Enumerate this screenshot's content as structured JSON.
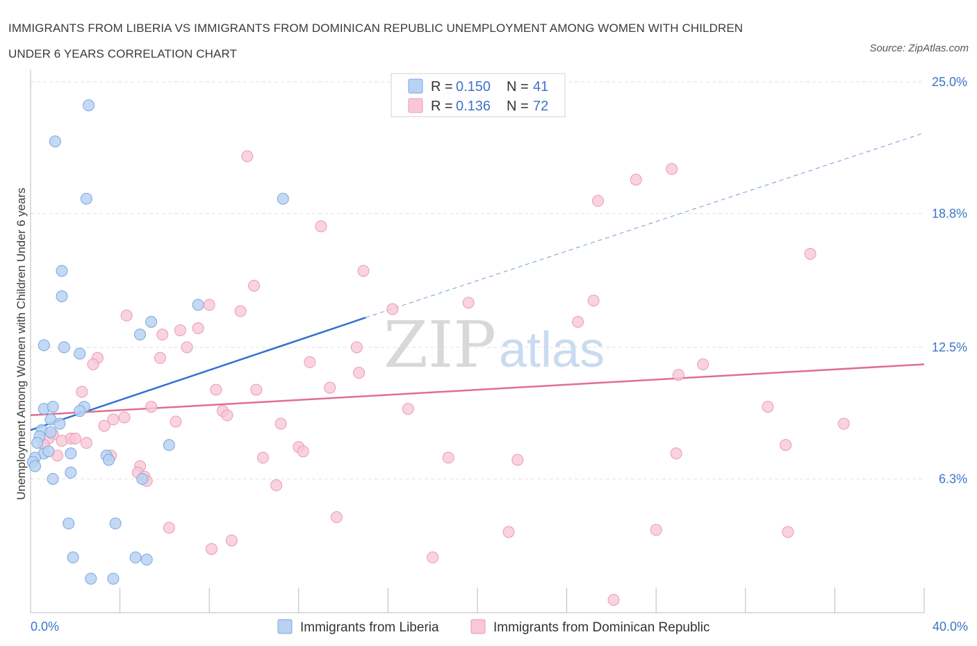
{
  "title_line1": "IMMIGRANTS FROM LIBERIA VS IMMIGRANTS FROM DOMINICAN REPUBLIC UNEMPLOYMENT AMONG WOMEN WITH CHILDREN",
  "title_line2": "UNDER 6 YEARS CORRELATION CHART",
  "source": "Source: ZipAtlas.com",
  "watermark": {
    "zip": "ZIP",
    "atlas": "atlas"
  },
  "legend": {
    "r_label": "R =",
    "n_label": "N =",
    "series1": {
      "r": "0.150",
      "n": "41"
    },
    "series2": {
      "r": "0.136",
      "n": "72"
    }
  },
  "colors": {
    "liberia_fill": "#b9d2f2",
    "liberia_stroke": "#7aa6df",
    "liberia_line": "#2f73cc",
    "dr_fill": "#f8c8d6",
    "dr_stroke": "#eb9ab2",
    "dr_line": "#e06d95",
    "tick": "#3b74c8",
    "grid": "#e2e2e2"
  },
  "chart_data": {
    "type": "scatter",
    "title": "IMMIGRANTS FROM LIBERIA VS IMMIGRANTS FROM DOMINICAN REPUBLIC UNEMPLOYMENT AMONG WOMEN WITH CHILDREN UNDER 6 YEARS CORRELATION CHART",
    "xlabel": "",
    "ylabel": "Unemployment Among Women with Children Under 6 years",
    "xlim": [
      0,
      40
    ],
    "ylim": [
      0,
      25
    ],
    "x_tick_labels": [
      {
        "value": 0,
        "label": "0.0%"
      },
      {
        "value": 40,
        "label": "40.0%"
      }
    ],
    "y_tick_labels": [
      {
        "value": 6.3,
        "label": "6.3%"
      },
      {
        "value": 12.5,
        "label": "12.5%"
      },
      {
        "value": 18.8,
        "label": "18.8%"
      },
      {
        "value": 25.0,
        "label": "25.0%"
      }
    ],
    "series": [
      {
        "name": "Immigrants from Liberia",
        "R": 0.15,
        "N": 41,
        "trend": {
          "x": [
            0,
            15
          ],
          "y": [
            8.6,
            13.9
          ],
          "dashed_extension": {
            "x": [
              15,
              40
            ],
            "y": [
              13.9,
              22.6
            ]
          }
        },
        "points": [
          {
            "x": 2.6,
            "y": 23.9
          },
          {
            "x": 1.1,
            "y": 22.2
          },
          {
            "x": 2.5,
            "y": 19.5
          },
          {
            "x": 11.3,
            "y": 19.5
          },
          {
            "x": 1.4,
            "y": 16.1
          },
          {
            "x": 1.4,
            "y": 14.9
          },
          {
            "x": 7.5,
            "y": 14.5
          },
          {
            "x": 5.4,
            "y": 13.7
          },
          {
            "x": 4.9,
            "y": 13.1
          },
          {
            "x": 0.6,
            "y": 12.6
          },
          {
            "x": 1.5,
            "y": 12.5
          },
          {
            "x": 2.2,
            "y": 12.2
          },
          {
            "x": 0.6,
            "y": 9.6
          },
          {
            "x": 1.0,
            "y": 9.7
          },
          {
            "x": 2.4,
            "y": 9.7
          },
          {
            "x": 2.2,
            "y": 9.5
          },
          {
            "x": 0.9,
            "y": 9.1
          },
          {
            "x": 1.3,
            "y": 8.9
          },
          {
            "x": 0.5,
            "y": 8.6
          },
          {
            "x": 0.9,
            "y": 8.5
          },
          {
            "x": 0.4,
            "y": 8.3
          },
          {
            "x": 0.3,
            "y": 8.0
          },
          {
            "x": 6.2,
            "y": 7.9
          },
          {
            "x": 0.6,
            "y": 7.5
          },
          {
            "x": 1.8,
            "y": 7.5
          },
          {
            "x": 3.4,
            "y": 7.4
          },
          {
            "x": 0.2,
            "y": 7.3
          },
          {
            "x": 3.5,
            "y": 7.2
          },
          {
            "x": 0.1,
            "y": 7.1
          },
          {
            "x": 1.8,
            "y": 6.6
          },
          {
            "x": 1.0,
            "y": 6.3
          },
          {
            "x": 5.0,
            "y": 6.3
          },
          {
            "x": 1.7,
            "y": 4.2
          },
          {
            "x": 3.8,
            "y": 4.2
          },
          {
            "x": 1.9,
            "y": 2.6
          },
          {
            "x": 4.7,
            "y": 2.6
          },
          {
            "x": 5.2,
            "y": 2.5
          },
          {
            "x": 2.7,
            "y": 1.6
          },
          {
            "x": 3.7,
            "y": 1.6
          },
          {
            "x": 0.2,
            "y": 6.9
          },
          {
            "x": 0.8,
            "y": 7.6
          }
        ]
      },
      {
        "name": "Immigrants from Dominican Republic",
        "R": 0.136,
        "N": 72,
        "trend": {
          "x": [
            0,
            40
          ],
          "y": [
            9.3,
            11.7
          ]
        },
        "points": [
          {
            "x": 9.7,
            "y": 21.5
          },
          {
            "x": 28.7,
            "y": 20.9
          },
          {
            "x": 27.1,
            "y": 20.4
          },
          {
            "x": 25.4,
            "y": 19.4
          },
          {
            "x": 13.0,
            "y": 18.2
          },
          {
            "x": 34.9,
            "y": 16.9
          },
          {
            "x": 14.9,
            "y": 16.1
          },
          {
            "x": 10.0,
            "y": 15.4
          },
          {
            "x": 8.0,
            "y": 14.5
          },
          {
            "x": 25.2,
            "y": 14.7
          },
          {
            "x": 19.6,
            "y": 14.6
          },
          {
            "x": 16.2,
            "y": 14.3
          },
          {
            "x": 9.4,
            "y": 14.2
          },
          {
            "x": 4.3,
            "y": 14.0
          },
          {
            "x": 24.5,
            "y": 13.7
          },
          {
            "x": 7.5,
            "y": 13.4
          },
          {
            "x": 6.7,
            "y": 13.3
          },
          {
            "x": 5.9,
            "y": 13.1
          },
          {
            "x": 7.0,
            "y": 12.5
          },
          {
            "x": 14.6,
            "y": 12.5
          },
          {
            "x": 3.0,
            "y": 12.0
          },
          {
            "x": 5.8,
            "y": 12.0
          },
          {
            "x": 12.5,
            "y": 11.8
          },
          {
            "x": 2.8,
            "y": 11.7
          },
          {
            "x": 30.1,
            "y": 11.7
          },
          {
            "x": 14.7,
            "y": 11.3
          },
          {
            "x": 29.0,
            "y": 11.2
          },
          {
            "x": 13.4,
            "y": 10.6
          },
          {
            "x": 8.3,
            "y": 10.5
          },
          {
            "x": 10.1,
            "y": 10.5
          },
          {
            "x": 2.3,
            "y": 10.4
          },
          {
            "x": 5.4,
            "y": 9.7
          },
          {
            "x": 16.9,
            "y": 9.6
          },
          {
            "x": 33.0,
            "y": 9.7
          },
          {
            "x": 8.6,
            "y": 9.5
          },
          {
            "x": 8.8,
            "y": 9.3
          },
          {
            "x": 4.2,
            "y": 9.2
          },
          {
            "x": 3.7,
            "y": 9.1
          },
          {
            "x": 6.5,
            "y": 9.0
          },
          {
            "x": 3.3,
            "y": 8.8
          },
          {
            "x": 11.2,
            "y": 8.9
          },
          {
            "x": 36.4,
            "y": 8.9
          },
          {
            "x": 1.0,
            "y": 8.4
          },
          {
            "x": 0.8,
            "y": 8.2
          },
          {
            "x": 1.8,
            "y": 8.2
          },
          {
            "x": 2.0,
            "y": 8.2
          },
          {
            "x": 1.4,
            "y": 8.1
          },
          {
            "x": 2.5,
            "y": 8.0
          },
          {
            "x": 0.6,
            "y": 7.9
          },
          {
            "x": 33.8,
            "y": 7.9
          },
          {
            "x": 12.0,
            "y": 7.8
          },
          {
            "x": 12.2,
            "y": 7.6
          },
          {
            "x": 1.2,
            "y": 7.4
          },
          {
            "x": 3.6,
            "y": 7.4
          },
          {
            "x": 28.9,
            "y": 7.5
          },
          {
            "x": 18.7,
            "y": 7.3
          },
          {
            "x": 10.4,
            "y": 7.3
          },
          {
            "x": 21.8,
            "y": 7.2
          },
          {
            "x": 4.9,
            "y": 6.9
          },
          {
            "x": 4.8,
            "y": 6.6
          },
          {
            "x": 5.1,
            "y": 6.4
          },
          {
            "x": 5.2,
            "y": 6.2
          },
          {
            "x": 11.0,
            "y": 6.0
          },
          {
            "x": 13.7,
            "y": 4.5
          },
          {
            "x": 6.2,
            "y": 4.0
          },
          {
            "x": 28.0,
            "y": 3.9
          },
          {
            "x": 21.4,
            "y": 3.8
          },
          {
            "x": 33.9,
            "y": 3.8
          },
          {
            "x": 9.0,
            "y": 3.4
          },
          {
            "x": 8.1,
            "y": 3.0
          },
          {
            "x": 18.0,
            "y": 2.6
          },
          {
            "x": 26.1,
            "y": 0.6
          }
        ]
      }
    ]
  },
  "bottom_legend": [
    "Immigrants from Liberia",
    "Immigrants from Dominican Republic"
  ]
}
